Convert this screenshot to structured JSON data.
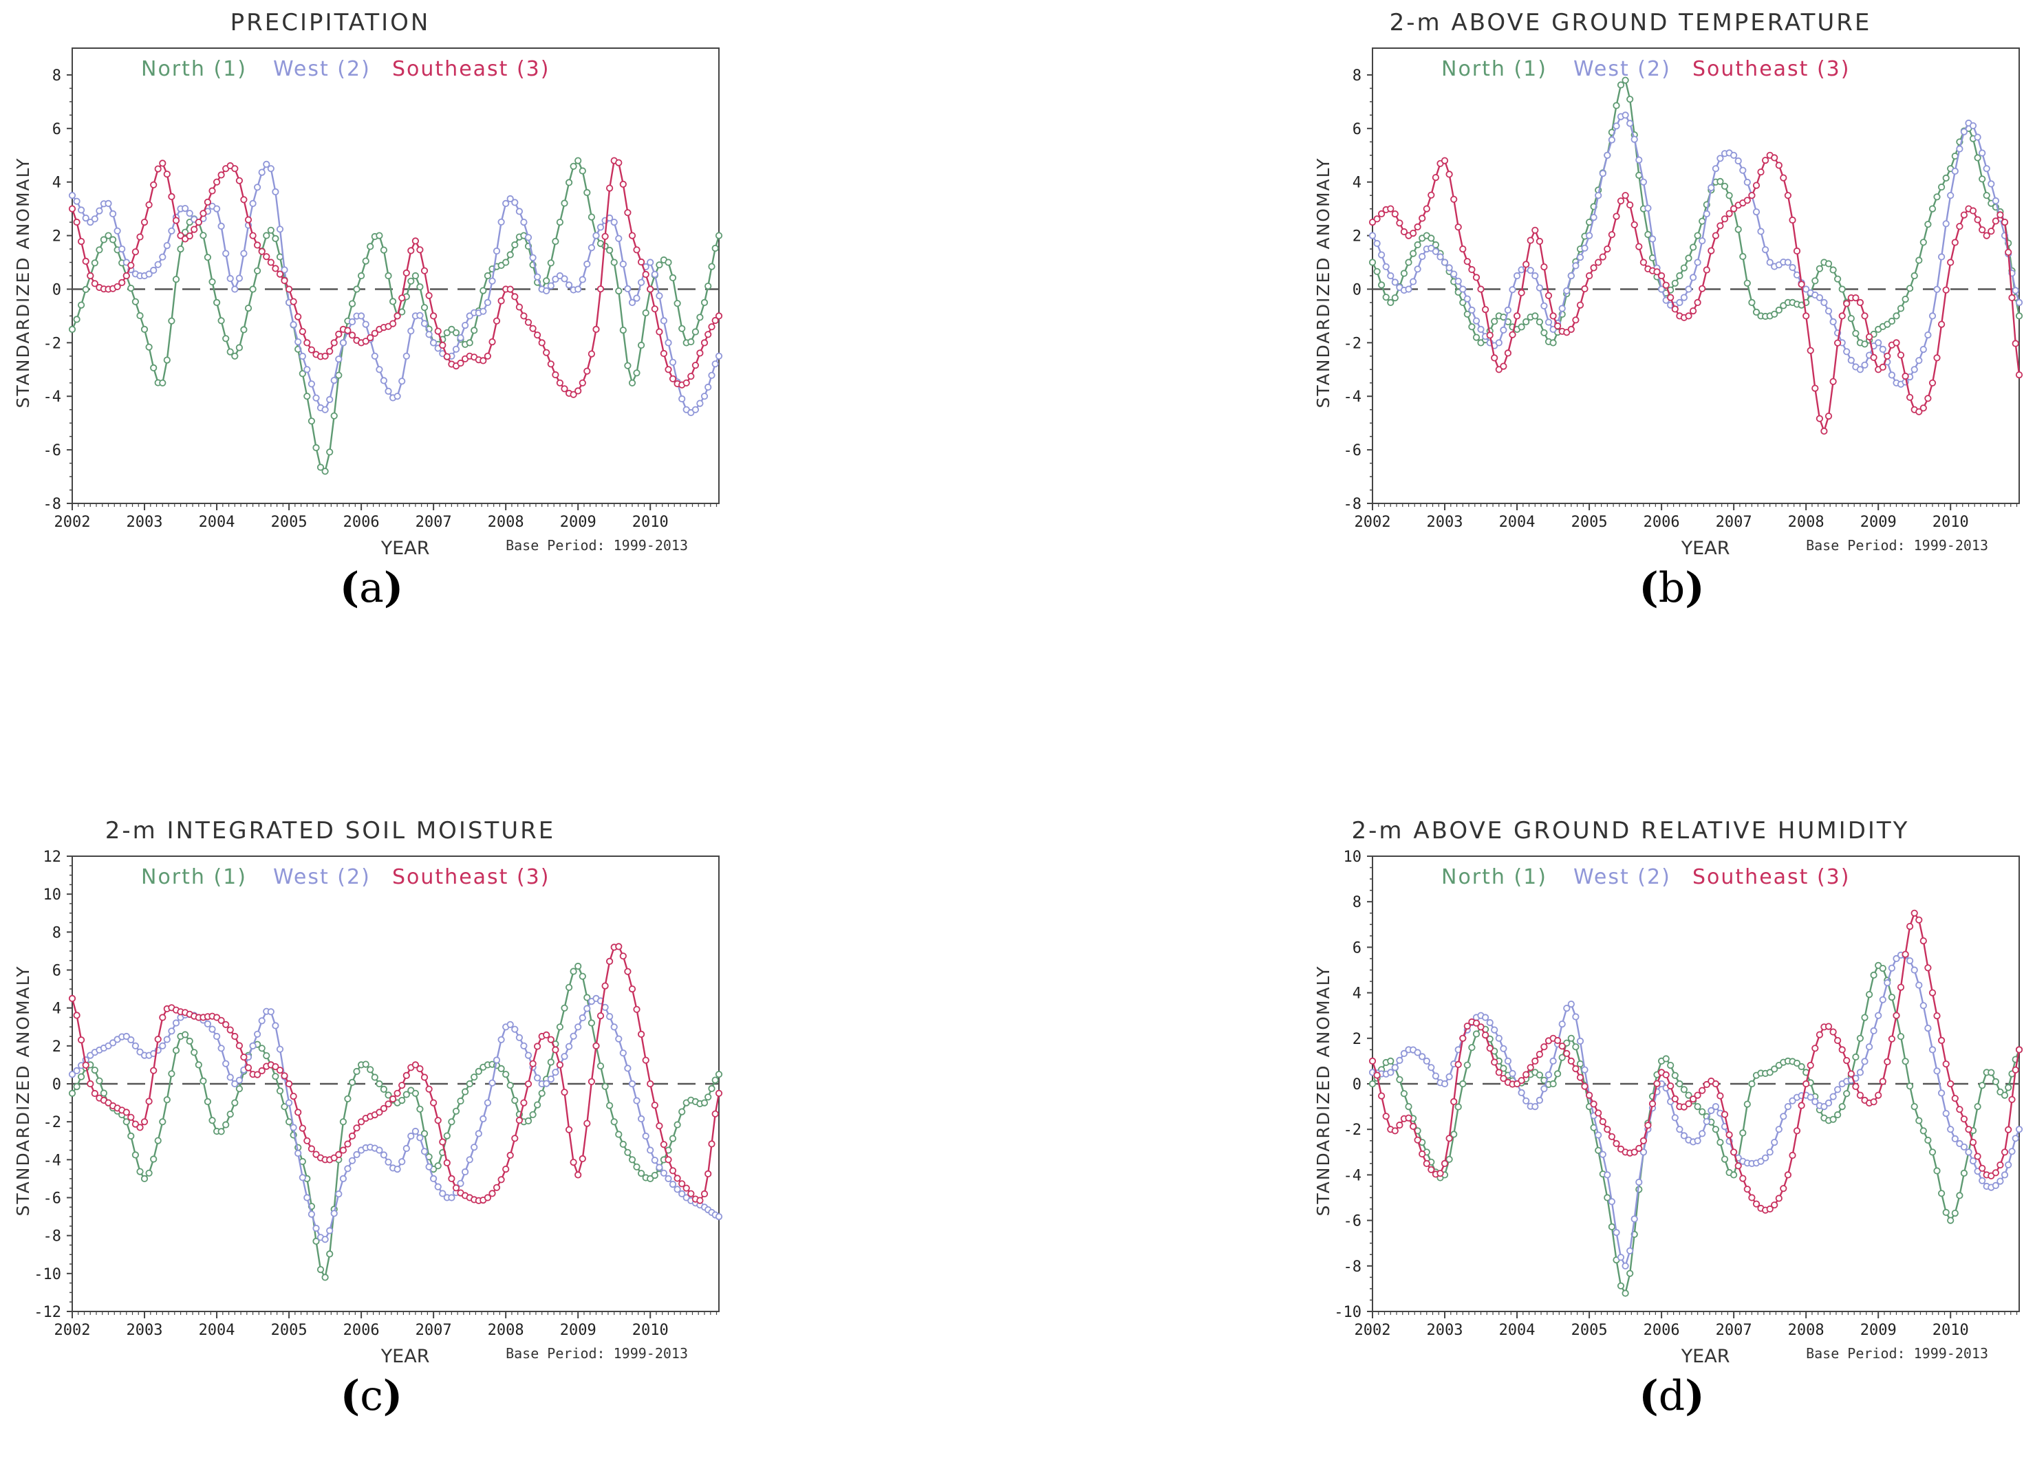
{
  "panel_letters": [
    "a",
    "b",
    "c",
    "d"
  ],
  "legend": [
    {
      "name": "North (1)",
      "color": "#5e9a72"
    },
    {
      "name": "West (2)",
      "color": "#8f96d8"
    },
    {
      "name": "Southeast (3)",
      "color": "#c8305e"
    }
  ],
  "chart_data": [
    {
      "type": "line",
      "title": "PRECIPITATION",
      "xlabel": "YEAR",
      "ylabel": "STANDARDIZED ANOMALY",
      "annotation": "Base Period: 1999-2013",
      "xlim": [
        2002,
        2010.95
      ],
      "xticks": [
        "2002",
        "2003",
        "2004",
        "2005",
        "2006",
        "2007",
        "2008",
        "2009",
        "2010"
      ],
      "ylim": [
        -8,
        9
      ],
      "yticks": [
        "-8",
        "-6",
        "-4",
        "-2",
        "0",
        "2",
        "4",
        "6",
        "8"
      ],
      "x": [
        2002.0,
        2002.25,
        2002.5,
        2002.75,
        2003.0,
        2003.25,
        2003.5,
        2003.75,
        2004.0,
        2004.25,
        2004.5,
        2004.75,
        2005.0,
        2005.25,
        2005.5,
        2005.75,
        2006.0,
        2006.25,
        2006.5,
        2006.75,
        2007.0,
        2007.25,
        2007.5,
        2007.75,
        2008.0,
        2008.25,
        2008.5,
        2008.75,
        2009.0,
        2009.25,
        2009.5,
        2009.75,
        2010.0,
        2010.25,
        2010.5,
        2010.75,
        2010.95
      ],
      "series": [
        {
          "name": "North (1)",
          "values": [
            -1.5,
            0.5,
            2.0,
            0.5,
            -1.5,
            -3.5,
            1.5,
            2.5,
            -0.5,
            -2.5,
            0.0,
            2.2,
            -0.5,
            -4.0,
            -6.8,
            -2.0,
            0.5,
            2.0,
            -1.0,
            0.5,
            -2.0,
            -1.5,
            -2.0,
            0.5,
            1.0,
            2.0,
            0.0,
            2.5,
            4.8,
            2.0,
            1.0,
            -3.5,
            0.0,
            1.0,
            -2.0,
            -0.5,
            2.0
          ]
        },
        {
          "name": "West (2)",
          "values": [
            3.5,
            2.5,
            3.2,
            1.0,
            0.5,
            1.2,
            3.0,
            2.5,
            3.0,
            0.0,
            3.2,
            4.5,
            -0.5,
            -3.0,
            -4.5,
            -2.0,
            -1.0,
            -3.0,
            -4.0,
            -1.0,
            -2.0,
            -2.5,
            -1.0,
            -0.5,
            3.2,
            2.5,
            0.0,
            0.5,
            0.0,
            2.0,
            2.5,
            -0.5,
            1.0,
            -2.0,
            -4.5,
            -4.0,
            -2.5
          ]
        },
        {
          "name": "Southeast (3)",
          "values": [
            3.0,
            0.5,
            0.0,
            0.5,
            2.5,
            4.7,
            2.0,
            2.5,
            4.0,
            4.5,
            2.0,
            1.0,
            0.0,
            -2.0,
            -2.5,
            -1.5,
            -2.0,
            -1.5,
            -1.0,
            1.8,
            -1.0,
            -2.8,
            -2.5,
            -2.5,
            0.0,
            -1.0,
            -2.0,
            -3.5,
            -3.8,
            -1.5,
            4.8,
            2.0,
            0.0,
            -3.0,
            -3.5,
            -2.0,
            -1.0
          ]
        }
      ]
    },
    {
      "type": "line",
      "title": "2-m ABOVE GROUND TEMPERATURE",
      "xlabel": "YEAR",
      "ylabel": "STANDARDIZED ANOMALY",
      "annotation": "Base Period: 1999-2013",
      "xlim": [
        2002,
        2010.95
      ],
      "xticks": [
        "2002",
        "2003",
        "2004",
        "2005",
        "2006",
        "2007",
        "2008",
        "2009",
        "2010"
      ],
      "ylim": [
        -8,
        9
      ],
      "yticks": [
        "-8",
        "-6",
        "-4",
        "-2",
        "0",
        "2",
        "4",
        "6",
        "8"
      ],
      "x": [
        2002.0,
        2002.25,
        2002.5,
        2002.75,
        2003.0,
        2003.25,
        2003.5,
        2003.75,
        2004.0,
        2004.25,
        2004.5,
        2004.75,
        2005.0,
        2005.25,
        2005.5,
        2005.75,
        2006.0,
        2006.25,
        2006.5,
        2006.75,
        2007.0,
        2007.25,
        2007.5,
        2007.75,
        2008.0,
        2008.25,
        2008.5,
        2008.75,
        2009.0,
        2009.25,
        2009.5,
        2009.75,
        2010.0,
        2010.25,
        2010.5,
        2010.75,
        2010.95
      ],
      "series": [
        {
          "name": "North (1)",
          "values": [
            1.0,
            -0.5,
            1.0,
            2.0,
            1.0,
            -0.5,
            -2.0,
            -1.0,
            -1.5,
            -1.0,
            -2.0,
            0.5,
            2.5,
            5.0,
            7.8,
            3.0,
            0.0,
            0.5,
            2.0,
            4.0,
            3.0,
            -0.5,
            -1.0,
            -0.5,
            -0.5,
            1.0,
            0.0,
            -2.0,
            -1.5,
            -1.0,
            0.5,
            3.0,
            4.5,
            6.0,
            3.5,
            2.5,
            -1.0
          ]
        },
        {
          "name": "West (2)",
          "values": [
            2.0,
            0.5,
            0.0,
            1.5,
            1.0,
            0.0,
            -1.5,
            -2.0,
            0.5,
            0.5,
            -1.5,
            0.5,
            2.0,
            5.0,
            6.5,
            4.0,
            0.0,
            -0.5,
            1.0,
            4.5,
            5.0,
            3.5,
            1.0,
            1.0,
            0.0,
            -0.5,
            -2.0,
            -3.0,
            -2.0,
            -3.5,
            -3.0,
            -1.0,
            3.5,
            6.2,
            4.5,
            2.0,
            -0.5
          ]
        },
        {
          "name": "Southeast (3)",
          "values": [
            2.5,
            3.0,
            2.0,
            3.0,
            4.8,
            1.5,
            0.0,
            -3.0,
            -1.0,
            2.2,
            -1.0,
            -1.5,
            0.5,
            1.5,
            3.5,
            1.0,
            0.5,
            -1.0,
            -0.5,
            2.0,
            3.0,
            3.5,
            5.0,
            3.5,
            -1.0,
            -5.3,
            -1.0,
            -0.5,
            -3.0,
            -2.0,
            -4.5,
            -3.5,
            1.0,
            3.0,
            2.0,
            2.5,
            -3.2
          ]
        }
      ]
    },
    {
      "type": "line",
      "title": "2-m INTEGRATED SOIL MOISTURE",
      "xlabel": "YEAR",
      "ylabel": "STANDARDIZED ANOMALY",
      "annotation": "Base Period: 1999-2013",
      "xlim": [
        2002,
        2010.95
      ],
      "xticks": [
        "2002",
        "2003",
        "2004",
        "2005",
        "2006",
        "2007",
        "2008",
        "2009",
        "2010"
      ],
      "ylim": [
        -12,
        12
      ],
      "yticks": [
        "-12",
        "-10",
        "-8",
        "-6",
        "-4",
        "-2",
        "0",
        "2",
        "4",
        "6",
        "8",
        "10",
        "12"
      ],
      "x": [
        2002.0,
        2002.25,
        2002.5,
        2002.75,
        2003.0,
        2003.25,
        2003.5,
        2003.75,
        2004.0,
        2004.25,
        2004.5,
        2004.75,
        2005.0,
        2005.25,
        2005.5,
        2005.75,
        2006.0,
        2006.25,
        2006.5,
        2006.75,
        2007.0,
        2007.25,
        2007.5,
        2007.75,
        2008.0,
        2008.25,
        2008.5,
        2008.75,
        2009.0,
        2009.25,
        2009.5,
        2009.75,
        2010.0,
        2010.25,
        2010.5,
        2010.75,
        2010.95
      ],
      "series": [
        {
          "name": "North (1)",
          "values": [
            -0.5,
            1.0,
            -1.0,
            -2.0,
            -5.0,
            -2.0,
            2.5,
            1.0,
            -2.5,
            -1.0,
            2.0,
            1.0,
            -2.0,
            -5.0,
            -10.2,
            -2.0,
            1.0,
            0.0,
            -1.0,
            -0.5,
            -4.5,
            -2.0,
            0.0,
            1.0,
            0.5,
            -2.0,
            -0.5,
            3.0,
            6.2,
            2.0,
            -2.0,
            -4.0,
            -5.0,
            -3.5,
            -1.0,
            -1.0,
            0.5
          ]
        },
        {
          "name": "West (2)",
          "values": [
            0.5,
            1.5,
            2.0,
            2.5,
            1.5,
            2.0,
            3.5,
            3.5,
            2.5,
            0.0,
            2.0,
            3.8,
            -1.0,
            -6.0,
            -8.2,
            -5.0,
            -3.5,
            -3.5,
            -4.5,
            -2.5,
            -5.0,
            -6.0,
            -4.0,
            -1.0,
            3.0,
            2.0,
            0.0,
            1.0,
            3.0,
            4.5,
            3.0,
            0.0,
            -3.5,
            -5.0,
            -6.0,
            -6.5,
            -7.0
          ]
        },
        {
          "name": "Southeast (3)",
          "values": [
            4.5,
            0.0,
            -1.0,
            -1.5,
            -2.0,
            3.5,
            3.8,
            3.5,
            3.5,
            2.5,
            0.5,
            1.0,
            0.0,
            -3.0,
            -4.0,
            -3.5,
            -2.0,
            -1.5,
            -0.5,
            1.0,
            -1.0,
            -5.0,
            -6.0,
            -6.0,
            -4.5,
            -1.0,
            2.5,
            1.0,
            -4.8,
            2.0,
            7.2,
            5.0,
            0.0,
            -4.0,
            -5.5,
            -5.8,
            -0.5
          ]
        }
      ]
    },
    {
      "type": "line",
      "title": "2-m ABOVE GROUND RELATIVE HUMIDITY",
      "xlabel": "YEAR",
      "ylabel": "STANDARDIZED ANOMALY",
      "annotation": "Base Period: 1999-2013",
      "xlim": [
        2002,
        2010.95
      ],
      "xticks": [
        "2002",
        "2003",
        "2004",
        "2005",
        "2006",
        "2007",
        "2008",
        "2009",
        "2010"
      ],
      "ylim": [
        -10,
        10
      ],
      "yticks": [
        "-10",
        "-8",
        "-6",
        "-4",
        "-2",
        "0",
        "2",
        "4",
        "6",
        "8",
        "10"
      ],
      "x": [
        2002.0,
        2002.25,
        2002.5,
        2002.75,
        2003.0,
        2003.25,
        2003.5,
        2003.75,
        2004.0,
        2004.25,
        2004.5,
        2004.75,
        2005.0,
        2005.25,
        2005.5,
        2005.75,
        2006.0,
        2006.25,
        2006.5,
        2006.75,
        2007.0,
        2007.25,
        2007.5,
        2007.75,
        2008.0,
        2008.25,
        2008.5,
        2008.75,
        2009.0,
        2009.25,
        2009.5,
        2009.75,
        2010.0,
        2010.25,
        2010.5,
        2010.75,
        2010.95
      ],
      "series": [
        {
          "name": "North (1)",
          "values": [
            0.0,
            1.0,
            -1.0,
            -3.0,
            -4.0,
            0.0,
            2.5,
            1.0,
            0.0,
            0.5,
            0.0,
            2.0,
            -1.0,
            -5.0,
            -9.2,
            -3.0,
            1.0,
            0.0,
            -1.0,
            -2.0,
            -4.0,
            0.0,
            0.5,
            1.0,
            0.5,
            -1.5,
            -1.0,
            2.0,
            5.2,
            3.0,
            -1.0,
            -3.0,
            -6.0,
            -3.0,
            0.5,
            -0.5,
            1.5
          ]
        },
        {
          "name": "West (2)",
          "values": [
            0.5,
            0.5,
            1.5,
            1.0,
            0.0,
            2.0,
            3.0,
            2.0,
            0.0,
            -1.0,
            1.0,
            3.5,
            -0.5,
            -4.0,
            -8.0,
            -3.0,
            0.0,
            -2.0,
            -2.5,
            -1.0,
            -3.0,
            -3.5,
            -3.0,
            -1.0,
            -0.5,
            -1.0,
            0.0,
            0.5,
            3.0,
            5.5,
            5.0,
            1.5,
            -2.0,
            -3.0,
            -4.5,
            -4.0,
            -2.0
          ]
        },
        {
          "name": "Southeast (3)",
          "values": [
            1.0,
            -2.0,
            -1.5,
            -3.5,
            -3.5,
            2.0,
            2.5,
            0.5,
            0.0,
            1.0,
            2.0,
            1.0,
            -0.5,
            -2.0,
            -3.0,
            -2.5,
            0.5,
            -1.0,
            -0.5,
            0.0,
            -3.0,
            -5.0,
            -5.5,
            -4.0,
            0.0,
            2.5,
            1.5,
            -0.5,
            -0.5,
            3.0,
            7.5,
            4.0,
            0.0,
            -2.0,
            -4.0,
            -3.0,
            1.5
          ]
        }
      ]
    }
  ]
}
